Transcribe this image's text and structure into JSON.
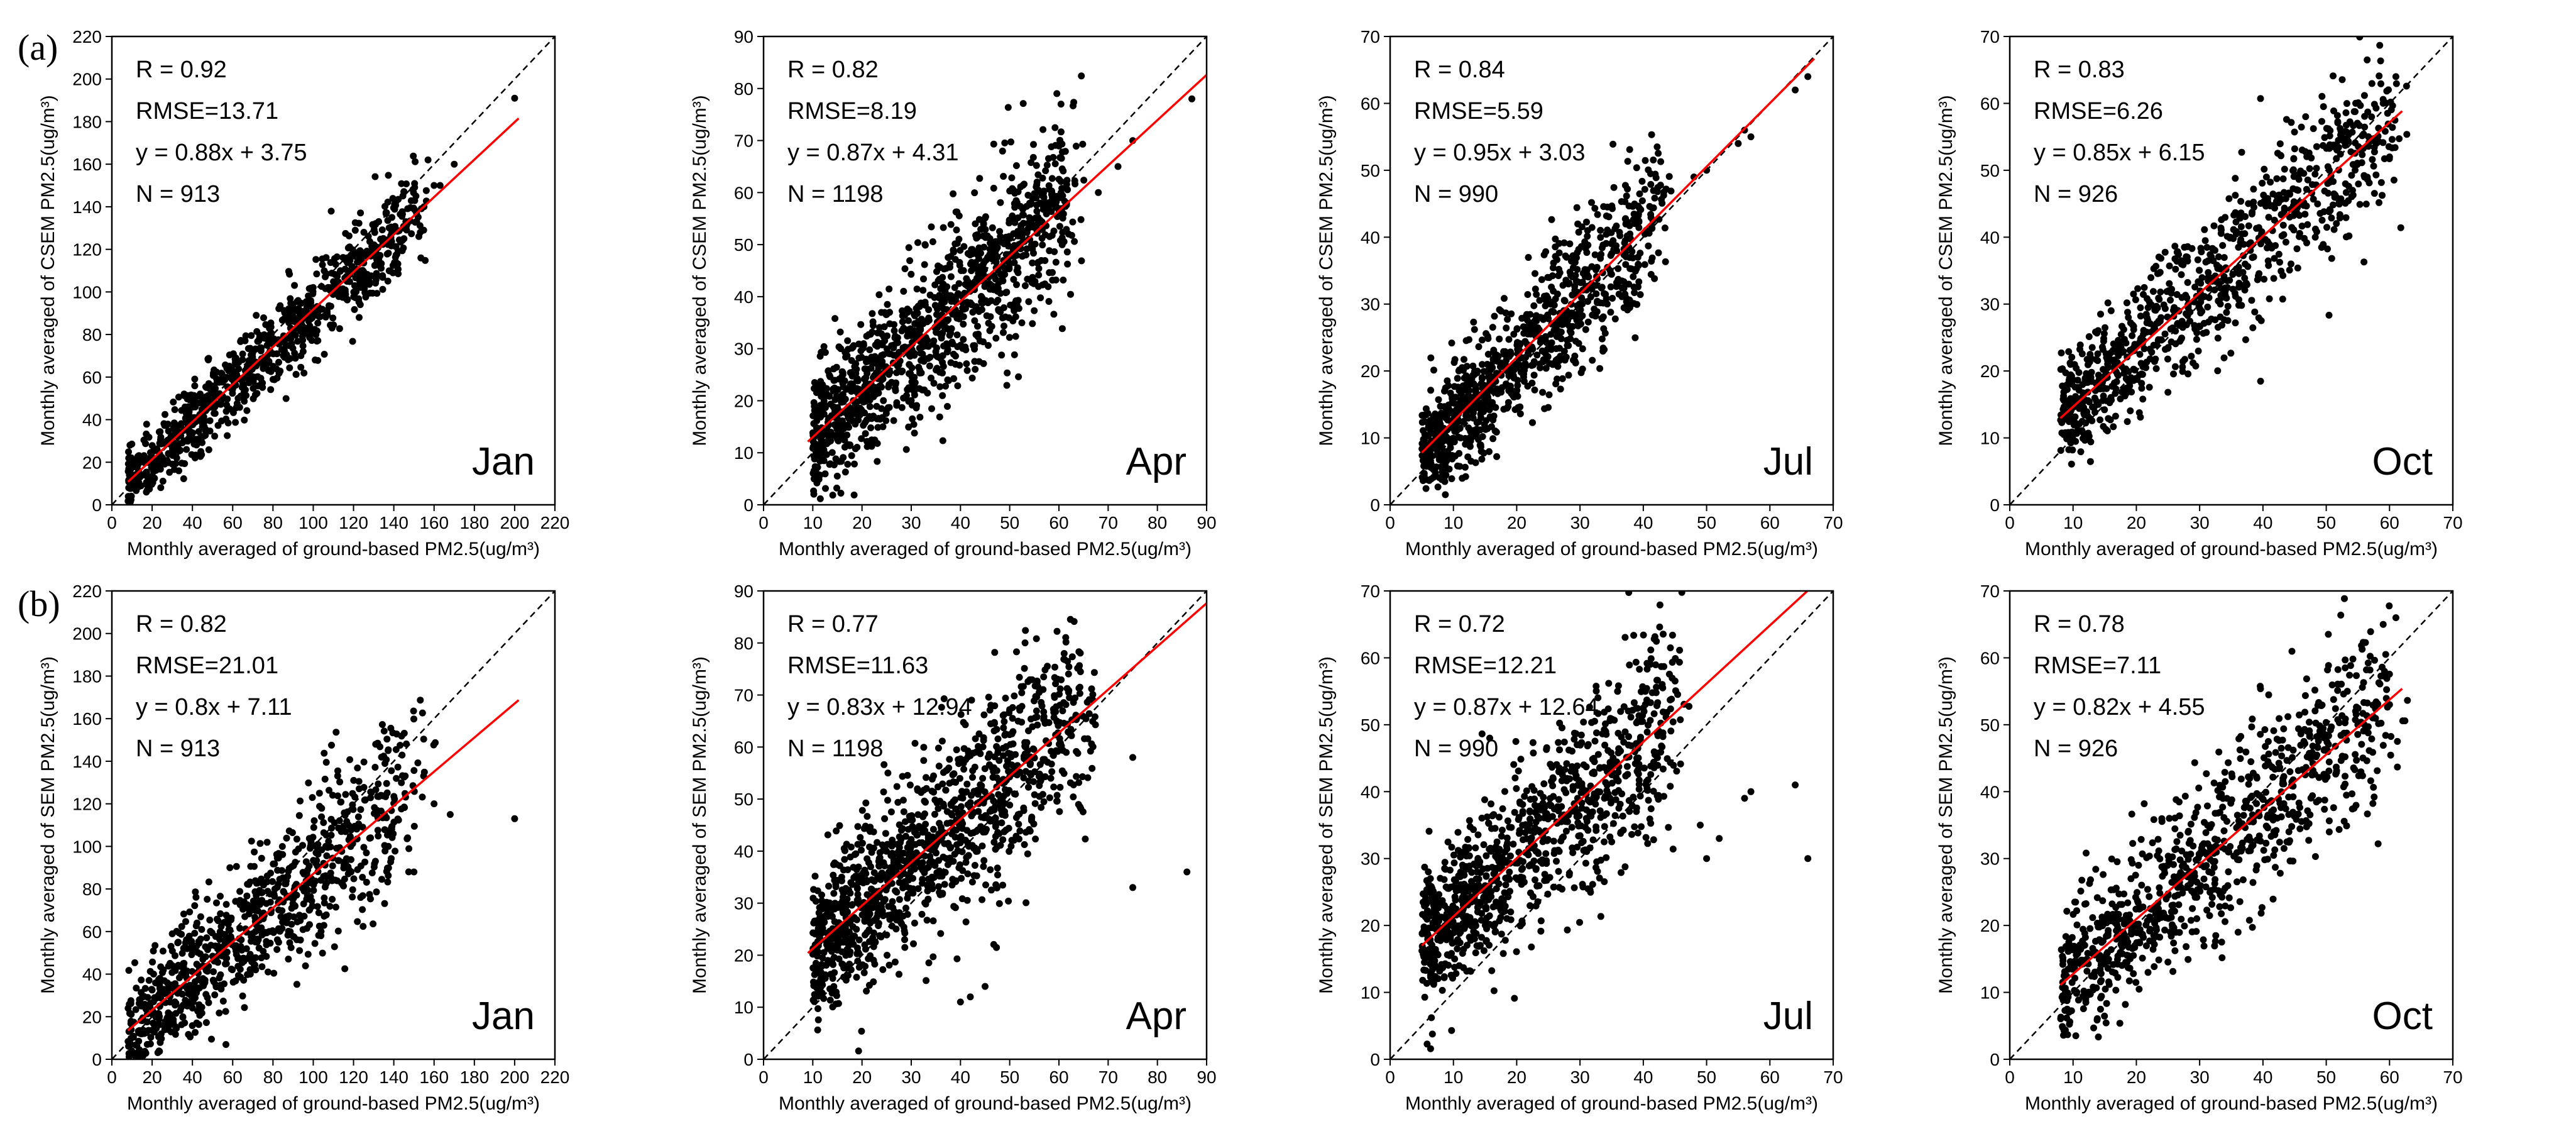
{
  "chart_data": [
    {
      "type": "scatter",
      "row": "a",
      "month": "Jan",
      "xlim": [
        0,
        220
      ],
      "ylim": [
        0,
        220
      ],
      "xticks": [
        0,
        20,
        40,
        60,
        80,
        100,
        120,
        140,
        160,
        180,
        200,
        220
      ],
      "yticks": [
        0,
        20,
        40,
        60,
        80,
        100,
        120,
        140,
        160,
        180,
        200,
        220
      ],
      "xlabel": "Monthly averaged of  ground-based PM2.5(ug/m³)",
      "ylabel": "Monthly averaged of  CSEM PM2.5(ug/m³)",
      "stats": {
        "r": "R = 0.92",
        "rmse": "RMSE=13.71",
        "fit": "y = 0.88x + 3.75",
        "n": "N = 913"
      },
      "n_points": 913,
      "slope": 0.88,
      "intercept": 3.75,
      "fit_x_range": [
        8,
        202
      ],
      "x_range": [
        8,
        150
      ],
      "spread": 10,
      "seed": 11,
      "outliers": [
        [
          200,
          191
        ],
        [
          170,
          160
        ],
        [
          163,
          150
        ],
        [
          157,
          162
        ],
        [
          145,
          130
        ],
        [
          155,
          140
        ],
        [
          160,
          150
        ]
      ]
    },
    {
      "type": "scatter",
      "row": "a",
      "month": "Apr",
      "xlim": [
        0,
        90
      ],
      "ylim": [
        0,
        90
      ],
      "xticks": [
        0,
        10,
        20,
        30,
        40,
        50,
        60,
        70,
        80,
        90
      ],
      "yticks": [
        0,
        10,
        20,
        30,
        40,
        50,
        60,
        70,
        80,
        90
      ],
      "xlabel": "Monthly averaged of  ground-based PM2.5(ug/m³)",
      "ylabel": "Monthly averaged of  CSEM PM2.5(ug/m³)",
      "stats": {
        "r": "R = 0.82",
        "rmse": "RMSE=8.19",
        "fit": "y = 0.87x + 4.31",
        "n": "N = 1198"
      },
      "n_points": 1198,
      "slope": 0.87,
      "intercept": 4.31,
      "fit_x_range": [
        9,
        90
      ],
      "x_range": [
        10,
        62
      ],
      "spread": 7.5,
      "seed": 23,
      "outliers": [
        [
          87,
          78
        ],
        [
          75,
          70
        ],
        [
          72,
          65
        ],
        [
          68,
          60
        ]
      ]
    },
    {
      "type": "scatter",
      "row": "a",
      "month": "Jul",
      "xlim": [
        0,
        70
      ],
      "ylim": [
        0,
        70
      ],
      "xticks": [
        0,
        10,
        20,
        30,
        40,
        50,
        60,
        70
      ],
      "yticks": [
        0,
        10,
        20,
        30,
        40,
        50,
        60,
        70
      ],
      "xlabel": "Monthly averaged of  ground-based PM2.5(ug/m³)",
      "ylabel": "Monthly averaged of  CSEM PM2.5(ug/m³)",
      "stats": {
        "r": "R = 0.84",
        "rmse": "RMSE=5.59",
        "fit": "y = 0.95x + 3.03",
        "n": "N = 990"
      },
      "n_points": 990,
      "slope": 0.95,
      "intercept": 3.03,
      "fit_x_range": [
        5,
        67
      ],
      "x_range": [
        5,
        42
      ],
      "spread": 5,
      "seed": 37,
      "outliers": [
        [
          66,
          64
        ],
        [
          64,
          62
        ],
        [
          56,
          56
        ],
        [
          57,
          55
        ],
        [
          55,
          54
        ],
        [
          50,
          50
        ],
        [
          48,
          49
        ]
      ]
    },
    {
      "type": "scatter",
      "row": "a",
      "month": "Oct",
      "xlim": [
        0,
        70
      ],
      "ylim": [
        0,
        70
      ],
      "xticks": [
        0,
        10,
        20,
        30,
        40,
        50,
        60,
        70
      ],
      "yticks": [
        0,
        10,
        20,
        30,
        40,
        50,
        60,
        70
      ],
      "xlabel": "Monthly averaged of  ground-based PM2.5(ug/m³)",
      "ylabel": "Monthly averaged of  CSEM PM2.5(ug/m³)",
      "stats": {
        "r": "R = 0.83",
        "rmse": "RMSE=6.26",
        "fit": "y = 0.85x + 6.15",
        "n": "N = 926"
      },
      "n_points": 926,
      "slope": 0.85,
      "intercept": 6.15,
      "fit_x_range": [
        8,
        62
      ],
      "x_range": [
        8,
        60
      ],
      "spread": 5.5,
      "seed": 41,
      "outliers": [
        [
          61,
          64
        ],
        [
          60,
          52
        ],
        [
          59,
          60
        ]
      ]
    },
    {
      "type": "scatter",
      "row": "b",
      "month": "Jan",
      "xlim": [
        0,
        220
      ],
      "ylim": [
        0,
        220
      ],
      "xticks": [
        0,
        20,
        40,
        60,
        80,
        100,
        120,
        140,
        160,
        180,
        200,
        220
      ],
      "yticks": [
        0,
        20,
        40,
        60,
        80,
        100,
        120,
        140,
        160,
        180,
        200,
        220
      ],
      "xlabel": "Monthly averaged of  ground-based PM2.5(ug/m³)",
      "ylabel": "Monthly averaged of SEM PM2.5(ug/m³)",
      "stats": {
        "r": "R = 0.82",
        "rmse": "RMSE=21.01",
        "fit": "y = 0.8x + 7.11",
        "n": "N = 913"
      },
      "n_points": 913,
      "slope": 0.8,
      "intercept": 7.11,
      "fit_x_range": [
        8,
        202
      ],
      "x_range": [
        8,
        150
      ],
      "spread": 17,
      "seed": 53,
      "outliers": [
        [
          200,
          113
        ],
        [
          168,
          115
        ],
        [
          160,
          120
        ],
        [
          150,
          88
        ]
      ]
    },
    {
      "type": "scatter",
      "row": "b",
      "month": "Apr",
      "xlim": [
        0,
        90
      ],
      "ylim": [
        0,
        90
      ],
      "xticks": [
        0,
        10,
        20,
        30,
        40,
        50,
        60,
        70,
        80,
        90
      ],
      "yticks": [
        0,
        10,
        20,
        30,
        40,
        50,
        60,
        70,
        80,
        90
      ],
      "xlabel": "Monthly averaged of  ground-based PM2.5(ug/m³)",
      "ylabel": "Monthly averaged of SEM PM2.5(ug/m³)",
      "stats": {
        "r": "R = 0.77",
        "rmse": "RMSE=11.63",
        "fit": "y = 0.83x + 12.94",
        "n": "N = 1198"
      },
      "n_points": 1198,
      "slope": 0.83,
      "intercept": 12.94,
      "fit_x_range": [
        9,
        90
      ],
      "x_range": [
        10,
        65
      ],
      "spread": 9,
      "seed": 67,
      "outliers": [
        [
          86,
          36
        ],
        [
          75,
          33
        ],
        [
          75,
          58
        ],
        [
          40,
          11
        ],
        [
          42,
          12
        ],
        [
          45,
          14
        ]
      ]
    },
    {
      "type": "scatter",
      "row": "b",
      "month": "Jul",
      "xlim": [
        0,
        70
      ],
      "ylim": [
        0,
        70
      ],
      "xticks": [
        0,
        10,
        20,
        30,
        40,
        50,
        60,
        70
      ],
      "yticks": [
        0,
        10,
        20,
        30,
        40,
        50,
        60,
        70
      ],
      "xlabel": "Monthly averaged of  ground-based PM2.5(ug/m³)",
      "ylabel": "Monthly averaged of SEM PM2.5(ug/m³)",
      "stats": {
        "r": "R = 0.72",
        "rmse": "RMSE=12.21",
        "fit": "y = 0.87x + 12.64",
        "n": "N = 990"
      },
      "n_points": 990,
      "slope": 0.87,
      "intercept": 12.64,
      "fit_x_range": [
        5,
        67
      ],
      "x_range": [
        5,
        45
      ],
      "spread": 7,
      "seed": 71,
      "outliers": [
        [
          66,
          30
        ],
        [
          64,
          41
        ],
        [
          57,
          40
        ],
        [
          56,
          39
        ],
        [
          50,
          30
        ],
        [
          49,
          35
        ],
        [
          52,
          33
        ]
      ]
    },
    {
      "type": "scatter",
      "row": "b",
      "month": "Oct",
      "xlim": [
        0,
        70
      ],
      "ylim": [
        0,
        70
      ],
      "xticks": [
        0,
        10,
        20,
        30,
        40,
        50,
        60,
        70
      ],
      "yticks": [
        0,
        10,
        20,
        30,
        40,
        50,
        60,
        70
      ],
      "xlabel": "Monthly averaged of  ground-based PM2.5(ug/m³)",
      "ylabel": "Monthly averaged of SEM PM2.5(ug/m³)",
      "stats": {
        "r": "R = 0.78",
        "rmse": "RMSE=7.11",
        "fit": "y = 0.82x + 4.55",
        "n": "N = 926"
      },
      "n_points": 926,
      "slope": 0.82,
      "intercept": 4.55,
      "fit_x_range": [
        8,
        62
      ],
      "x_range": [
        8,
        60
      ],
      "spread": 6.5,
      "seed": 89,
      "outliers": [
        [
          61,
          66
        ],
        [
          59,
          65
        ],
        [
          60,
          53
        ],
        [
          55,
          50
        ]
      ]
    }
  ],
  "row_labels": {
    "a": "(a)",
    "b": "(b)"
  },
  "colors": {
    "points": "#000000",
    "fit_line": "#ff0000",
    "identity_line": "#000000",
    "axes": "#000000"
  }
}
